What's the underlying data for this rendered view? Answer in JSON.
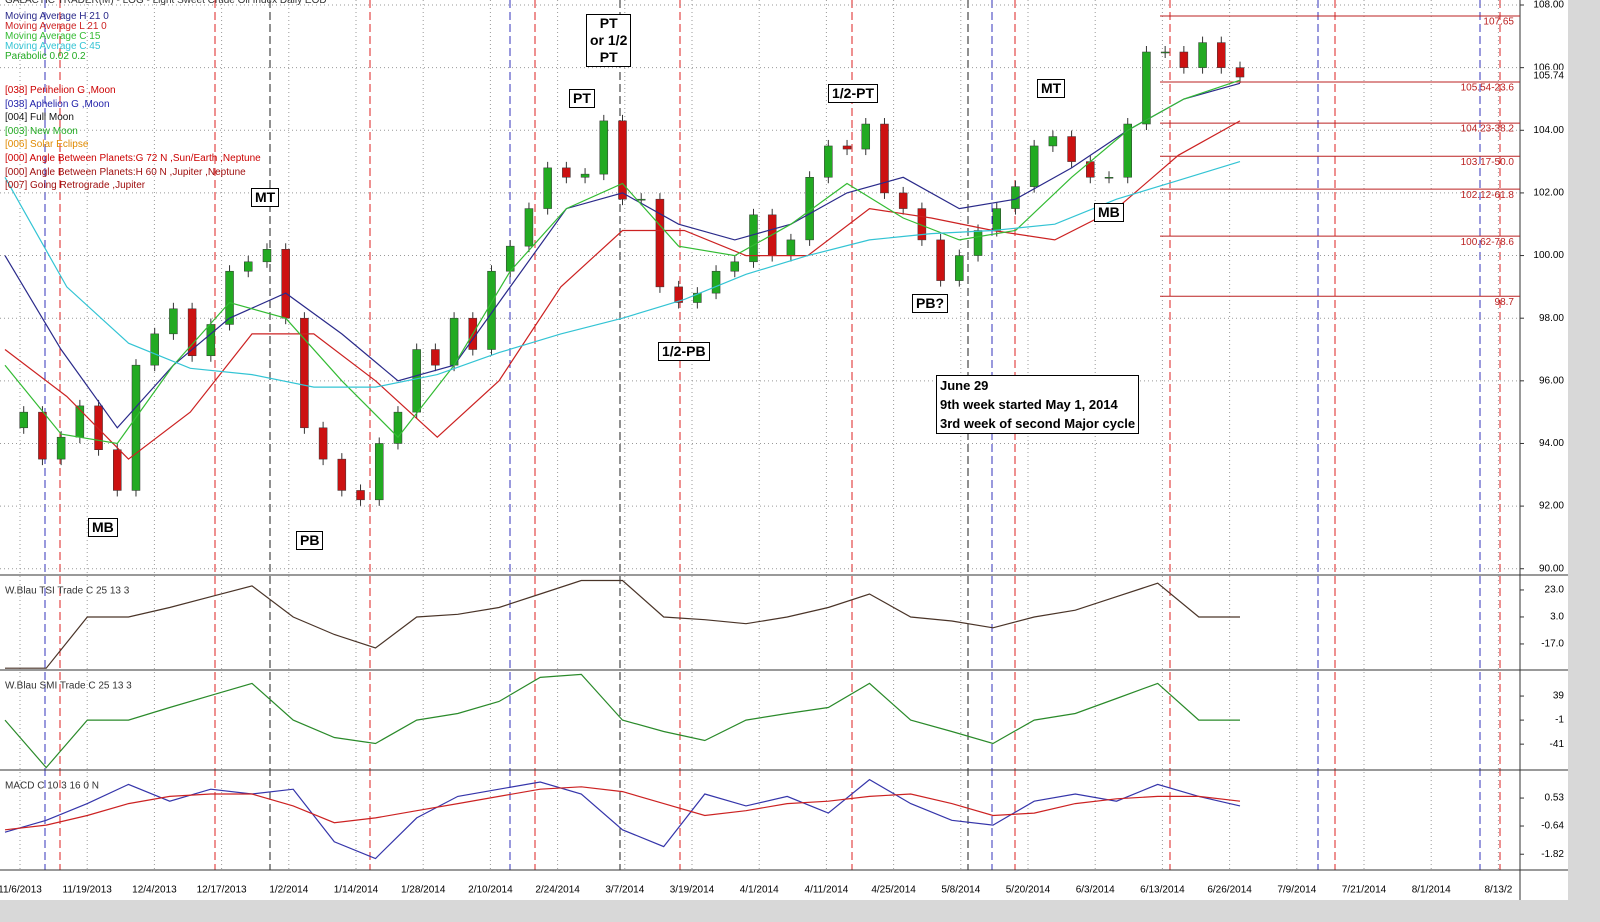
{
  "header": {
    "title": "GALACTIC TRADER(M) - LOG - Light Sweet Crude Oil Index Daily EOD"
  },
  "date_axis": [
    "11/6/2013",
    "11/19/2013",
    "12/4/2013",
    "12/17/2013",
    "1/2/2014",
    "1/14/2014",
    "1/28/2014",
    "2/10/2014",
    "2/24/2014",
    "3/7/2014",
    "3/19/2014",
    "4/1/2014",
    "4/11/2014",
    "4/25/2014",
    "5/8/2014",
    "5/20/2014",
    "6/3/2014",
    "6/13/2014",
    "6/26/2014",
    "7/9/2014",
    "7/21/2014",
    "8/1/2014",
    "8/13/2"
  ],
  "legend_extra": [
    {
      "name": "Parabolic 0.02 0.2",
      "color": "#22aa22"
    },
    {
      "name": "[038] Perihelion G ,Moon",
      "color": "#cc0000"
    },
    {
      "name": "[038] Aphelion G ,Moon",
      "color": "#2222aa"
    },
    {
      "name": "[004] Full Moon",
      "color": "#111111"
    },
    {
      "name": "[003] New Moon",
      "color": "#22aa22"
    },
    {
      "name": "[006] Solar Eclipse",
      "color": "#e08a00"
    },
    {
      "name": "[000] Angle Between Planets:G 72 N ,Sun/Earth ,Neptune",
      "color": "#cc0000"
    },
    {
      "name": "[000] Angle Between Planets:H 60 N ,Jupiter ,Neptune",
      "color": "#a01010"
    },
    {
      "name": "[007] Going Retrograde ,Jupiter",
      "color": "#a01010"
    }
  ],
  "annotations": {
    "mb1": "MB",
    "pb1": "PB",
    "mt1": "MT",
    "pt_box": [
      "PT",
      "or 1/2",
      "PT"
    ],
    "pt": "PT",
    "half_pb": "1/2-PB",
    "half_pt": "1/2-PT",
    "pb2": "PB?",
    "mt2": "MT",
    "mb2": "MB",
    "note": [
      "June 29",
      "9th week started May 1, 2014",
      "3rd week of second Major cycle"
    ]
  },
  "chart_data": [
    {
      "type": "candlestick",
      "up_color": "#22aa22",
      "down_color": "#cc1111",
      "values": [
        94.5,
        95,
        93.5,
        94.2,
        95.2,
        93.8,
        92.5,
        96.5,
        97.5,
        98.3,
        96.8,
        97.8,
        99.5,
        99.8,
        100.2,
        98,
        94.5,
        93.5,
        92.5,
        92.2,
        94,
        95,
        97,
        96.5,
        98,
        97,
        99.5,
        100.3,
        101.5,
        102.8,
        102.5,
        102.6,
        104.3,
        101.8,
        101.8,
        99,
        98.5,
        98.8,
        99.5,
        99.8,
        101.3,
        100,
        100.5,
        102.5,
        103.5,
        103.4,
        104.2,
        102,
        101.5,
        100.5,
        99.2,
        100,
        100.8,
        101.5,
        102.2,
        103.5,
        103.8,
        103,
        102.5,
        102.5,
        104.2,
        106.5,
        106.5,
        106,
        106.8,
        106,
        105.7
      ],
      "series": [
        {
          "name": "Moving Average H 21 0",
          "color": "#2a2a8a",
          "values": [
            100,
            97,
            94.5,
            96.5,
            98,
            98.8,
            97.5,
            96,
            96.5,
            99,
            101.5,
            102,
            101,
            100.5,
            101,
            102,
            102.5,
            101.5,
            101.8,
            102.8,
            104,
            105,
            105.5
          ]
        },
        {
          "name": "Moving Average L 21 0",
          "color": "#cc2222",
          "values": [
            97,
            95.5,
            93.5,
            95,
            97.5,
            97.5,
            96,
            94.2,
            96,
            99,
            100.8,
            100.8,
            100,
            100,
            101.5,
            101.2,
            100.8,
            100.5,
            101.5,
            103.2,
            104.3
          ]
        },
        {
          "name": "Moving Average C 15",
          "color": "#33bb33",
          "values": [
            96.5,
            94.3,
            94,
            96.5,
            98.5,
            98,
            96,
            94.2,
            96.5,
            99.5,
            101.5,
            102.3,
            100.3,
            100,
            101,
            102.3,
            101.2,
            100.5,
            100.8,
            102.5,
            104,
            105,
            105.6
          ]
        },
        {
          "name": "Moving Average C 45",
          "color": "#33c4d4",
          "values": [
            102.5,
            99,
            97.2,
            96.4,
            96.2,
            95.8,
            95.8,
            96.2,
            96.9,
            97.5,
            98,
            98.6,
            99.4,
            100,
            100.5,
            100.7,
            100.8,
            101,
            101.8,
            102.4,
            103
          ]
        }
      ],
      "ylim": [
        89.8,
        108.16
      ],
      "yticks": [
        {
          "value": 90,
          "label": "90.00"
        },
        {
          "value": 92,
          "label": "92.00"
        },
        {
          "value": 94,
          "label": "94.00"
        },
        {
          "value": 96,
          "label": "96.00"
        },
        {
          "value": 98,
          "label": "98.00"
        },
        {
          "value": 100,
          "label": "100.00"
        },
        {
          "value": 102,
          "label": "102.00"
        },
        {
          "value": 104,
          "label": "104.00"
        },
        {
          "value": 106,
          "label": "106.00"
        },
        {
          "value": 108,
          "label": "108.00"
        }
      ],
      "levels": [
        {
          "value": 107.65,
          "label": "107.65"
        },
        {
          "value": 105.54,
          "label": "105.54-23.6"
        },
        {
          "value": 104.23,
          "label": "104.23-38.2"
        },
        {
          "value": 103.17,
          "label": "103.17-50.0"
        },
        {
          "value": 102.12,
          "label": "102.12-61.8"
        },
        {
          "value": 100.62,
          "label": "100.62-78.6"
        },
        {
          "value": 98.7,
          "label": "98.7"
        }
      ],
      "last_price": {
        "value": 105.74,
        "label": "105.74"
      }
    },
    {
      "type": "line",
      "title": "W.Blau TSI Trade C 25 13 3",
      "series": [
        {
          "color": "#4a3428",
          "values": [
            -35,
            -35,
            3,
            3,
            10,
            18,
            26,
            3,
            -10,
            -20,
            3,
            5,
            10,
            20,
            30,
            30,
            3,
            1,
            -2,
            3,
            10,
            20,
            3,
            0,
            -5,
            3,
            8,
            18,
            28,
            3,
            3
          ]
        }
      ],
      "ylim": [
        -36.3,
        32.6
      ],
      "yticks": [
        {
          "value": 23,
          "label": "23.0"
        },
        {
          "value": 3,
          "label": "3.0"
        },
        {
          "value": -17,
          "label": "-17.0"
        }
      ]
    },
    {
      "type": "line",
      "title": "W.Blau SMI Trade C 25 13 3",
      "series": [
        {
          "color": "#2a8a2a",
          "values": [
            -1,
            -80,
            -1,
            -1,
            20,
            40,
            60,
            -1,
            -30,
            -40,
            -1,
            10,
            30,
            70,
            75,
            -1,
            -20,
            -35,
            -1,
            10,
            20,
            60,
            -1,
            -20,
            -40,
            -1,
            10,
            35,
            60,
            -1,
            -1
          ]
        }
      ],
      "ylim": [
        -84,
        79
      ],
      "yticks": [
        39,
        -1,
        -41
      ]
    },
    {
      "type": "line",
      "title": "MACD C 10 3 16 0 N",
      "series": [
        {
          "color": "#3535aa",
          "values": [
            -0.9,
            -0.4,
            0.3,
            1.1,
            0.4,
            0.9,
            0.7,
            0.9,
            -1.3,
            -2.0,
            -0.3,
            0.6,
            0.9,
            1.2,
            0.7,
            -0.8,
            -1.5,
            0.7,
            0.2,
            0.6,
            -0.1,
            1.3,
            0.3,
            -0.4,
            -0.6,
            0.4,
            0.7,
            0.4,
            1.1,
            0.6,
            0.2
          ]
        },
        {
          "color": "#cc2222",
          "values": [
            -0.8,
            -0.6,
            -0.2,
            0.3,
            0.6,
            0.7,
            0.7,
            0.2,
            -0.5,
            -0.3,
            0,
            0.3,
            0.6,
            0.9,
            1.0,
            0.8,
            0.3,
            -0.2,
            0,
            0.3,
            0.4,
            0.6,
            0.7,
            0.3,
            -0.2,
            -0.1,
            0.3,
            0.5,
            0.6,
            0.6,
            0.4
          ]
        }
      ],
      "ylim": [
        -2.48,
        1.62
      ],
      "yticks": [
        0.53,
        -0.64,
        -1.82
      ]
    }
  ]
}
